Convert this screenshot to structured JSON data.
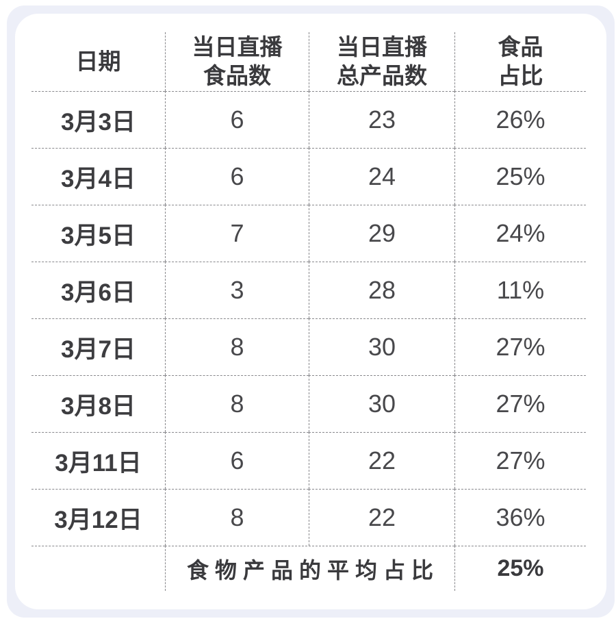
{
  "colors": {
    "frame_background": "#edeff8",
    "card_background": "#ffffff",
    "text_primary": "#3a3a3d",
    "text_numbers": "#48484b",
    "grid_line": "#87878b"
  },
  "table": {
    "header": {
      "date": "日期",
      "food_line1": "当日直播",
      "food_line2": "食品数",
      "total_line1": "当日直播",
      "total_line2": "总产品数",
      "ratio_line1": "食品",
      "ratio_line2": "占比"
    },
    "rows": [
      {
        "date": "3月3日",
        "food": "6",
        "total": "23",
        "ratio": "26%"
      },
      {
        "date": "3月4日",
        "food": "6",
        "total": "24",
        "ratio": "25%"
      },
      {
        "date": "3月5日",
        "food": "7",
        "total": "29",
        "ratio": "24%"
      },
      {
        "date": "3月6日",
        "food": "3",
        "total": "28",
        "ratio": "11%"
      },
      {
        "date": "3月7日",
        "food": "8",
        "total": "30",
        "ratio": "27%"
      },
      {
        "date": "3月8日",
        "food": "8",
        "total": "30",
        "ratio": "27%"
      },
      {
        "date": "3月11日",
        "food": "6",
        "total": "22",
        "ratio": "27%"
      },
      {
        "date": "3月12日",
        "food": "8",
        "total": "22",
        "ratio": "36%"
      }
    ],
    "footer": {
      "label": "食物产品的平均占比",
      "value": "25%"
    }
  },
  "chart_data": {
    "type": "table",
    "columns": [
      "日期",
      "当日直播食品数",
      "当日直播总产品数",
      "食品占比"
    ],
    "rows": [
      [
        "3月3日",
        6,
        23,
        "26%"
      ],
      [
        "3月4日",
        6,
        24,
        "25%"
      ],
      [
        "3月5日",
        7,
        29,
        "24%"
      ],
      [
        "3月6日",
        3,
        28,
        "11%"
      ],
      [
        "3月7日",
        8,
        30,
        "27%"
      ],
      [
        "3月8日",
        8,
        30,
        "27%"
      ],
      [
        "3月11日",
        6,
        22,
        "27%"
      ],
      [
        "3月12日",
        8,
        22,
        "36%"
      ]
    ],
    "footer": [
      "食物产品的平均占比",
      "25%"
    ],
    "title": "",
    "notes": "Daily livestream food product counts vs total products with food share percentage; footer shows average share 25%"
  }
}
